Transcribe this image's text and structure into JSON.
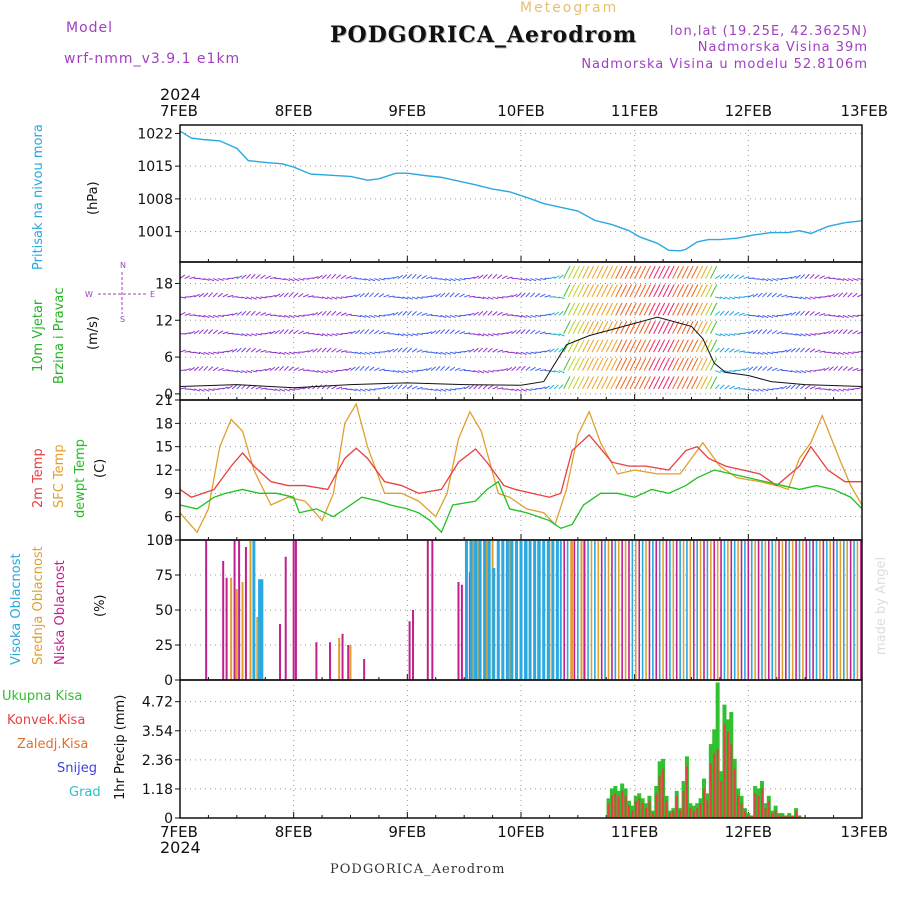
{
  "header": {
    "model_label": "Model",
    "model_name": "wrf-nmm_v3.9.1 e1km",
    "title": "PODGORICA_Aerodrom",
    "meteogram_label": "Meteogram",
    "lonlat": "lon,lat (19.25E, 42.3625N)",
    "elevation": "Nadmorska Visina 39m",
    "model_elevation": "Nadmorska Visina u modelu 52.8106m"
  },
  "footer": {
    "station": "PODGORICA_Aerodrom"
  },
  "watermark": "made by Angel",
  "colors": {
    "pressure": "#2aa8e0",
    "wind_label": "#22b322",
    "wind_sub": "#a040c0",
    "temp2m": "#e84040",
    "sfc": "#e0a030",
    "dew": "#20c020",
    "high_cloud": "#2aa8e0",
    "mid_cloud": "#e0a030",
    "low_cloud": "#c0208f",
    "total_precip": "#30c030",
    "conv_precip": "#e84040",
    "frozen": "#e07030",
    "snow": "#4040e0",
    "graupel": "#30c0c0"
  },
  "chart_data": [
    {
      "type": "line",
      "id": "pressure",
      "ylabel": "Pritisak na nivou mora",
      "unit": "(hPa)",
      "yticks": [
        "1022",
        "1015",
        "1008",
        "1001"
      ],
      "ytick_values": [
        1022,
        1015,
        1008,
        1001
      ],
      "ylim": [
        994.5,
        1023.8
      ],
      "x_start_label": "7FEB",
      "x_start_year": "2024",
      "x_labels": [
        "7FEB",
        "8FEB",
        "9FEB",
        "10FEB",
        "11FEB",
        "12FEB",
        "13FEB"
      ],
      "x_days": [
        0,
        1,
        2,
        3,
        4,
        5,
        6
      ],
      "series": [
        {
          "x": [
            0,
            0.1,
            0.2,
            0.35,
            0.5,
            0.6,
            0.75,
            0.9,
            1.0,
            1.15,
            1.3,
            1.5,
            1.65,
            1.75,
            1.9,
            2.0,
            2.15,
            2.3,
            2.45,
            2.6,
            2.75,
            2.9,
            3.05,
            3.2,
            3.35,
            3.5,
            3.65,
            3.8,
            3.95,
            4.05,
            4.2,
            4.3,
            4.4,
            4.45,
            4.55,
            4.65,
            4.75,
            4.9,
            5.05,
            5.2,
            5.35,
            5.45,
            5.55,
            5.7,
            5.85,
            6.0
          ],
          "values": [
            1022.5,
            1021.0,
            1020.7,
            1020.4,
            1018.8,
            1016.2,
            1015.8,
            1015.5,
            1014.8,
            1013.3,
            1013.1,
            1012.8,
            1012.0,
            1012.3,
            1013.5,
            1013.5,
            1013.0,
            1012.6,
            1011.8,
            1011.0,
            1010.1,
            1009.5,
            1008.3,
            1007.0,
            1006.2,
            1005.4,
            1003.4,
            1002.5,
            1001.2,
            999.8,
            998.5,
            997.0,
            996.9,
            997.2,
            998.8,
            999.3,
            999.3,
            999.6,
            1000.3,
            1000.8,
            1000.8,
            1001.2,
            1000.6,
            1002.1,
            1002.9,
            1003.3
          ]
        }
      ]
    },
    {
      "type": "barbs",
      "id": "wind",
      "ylabel": "10m Vjetar",
      "ylabel2": "Brzina i Pravac",
      "unit": "(m/s)",
      "compass": {
        "n": "N",
        "s": "S",
        "e": "E",
        "w": "W"
      },
      "yticks": [
        "18",
        "12",
        "6",
        "0"
      ],
      "ytick_values": [
        18,
        12,
        6,
        0
      ],
      "ylim": [
        -1,
        21.5
      ],
      "series": [
        {
          "name": "speed",
          "x": [
            0,
            0.5,
            1.0,
            1.5,
            2.0,
            2.5,
            3.0,
            3.2,
            3.4,
            3.6,
            3.8,
            4.0,
            4.2,
            4.5,
            4.6,
            4.7,
            4.8,
            5.0,
            5.2,
            5.5,
            6.0
          ],
          "values": [
            1.2,
            1.5,
            1.0,
            1.5,
            1.8,
            1.5,
            1.4,
            2.0,
            8.0,
            9.5,
            10.5,
            11.5,
            12.5,
            11.0,
            9.0,
            5.0,
            3.5,
            3.0,
            2.0,
            1.5,
            1.2
          ]
        }
      ]
    },
    {
      "type": "line",
      "id": "temperature",
      "ylabel": "2m Temp",
      "ylabel2": "SFC Temp",
      "ylabel3": "dewpt Temp",
      "unit": "(C)",
      "yticks": [
        "21",
        "18",
        "15",
        "12",
        "9",
        "6",
        "3"
      ],
      "ytick_values": [
        21,
        18,
        15,
        12,
        9,
        6,
        3
      ],
      "ylim": [
        3,
        21
      ],
      "series": [
        {
          "name": "2m Temp",
          "x": [
            0,
            0.1,
            0.2,
            0.3,
            0.45,
            0.55,
            0.65,
            0.8,
            0.95,
            1.1,
            1.3,
            1.45,
            1.55,
            1.65,
            1.8,
            1.95,
            2.1,
            2.3,
            2.45,
            2.6,
            2.7,
            2.85,
            2.95,
            3.1,
            3.25,
            3.35,
            3.45,
            3.6,
            3.8,
            3.95,
            4.1,
            4.3,
            4.45,
            4.55,
            4.65,
            4.8,
            4.95,
            5.1,
            5.25,
            5.45,
            5.55,
            5.7,
            5.85,
            6.0
          ],
          "values": [
            9.5,
            8.5,
            9.0,
            9.5,
            12.5,
            14.2,
            12.5,
            10.5,
            10.0,
            10.0,
            9.5,
            13.5,
            14.8,
            13.5,
            10.5,
            10.0,
            9.0,
            9.5,
            13.0,
            14.7,
            13.0,
            10.0,
            9.5,
            9.0,
            8.5,
            9.0,
            14.5,
            16.5,
            13.0,
            12.5,
            12.5,
            12.0,
            14.5,
            15.0,
            13.5,
            12.5,
            12.0,
            11.5,
            10.0,
            12.5,
            15.0,
            12.0,
            10.5,
            10.5
          ]
        },
        {
          "name": "SFC Temp",
          "x": [
            0,
            0.15,
            0.25,
            0.35,
            0.45,
            0.55,
            0.65,
            0.8,
            0.95,
            1.1,
            1.25,
            1.35,
            1.45,
            1.55,
            1.65,
            1.8,
            1.95,
            2.1,
            2.25,
            2.35,
            2.45,
            2.55,
            2.65,
            2.8,
            2.9,
            3.05,
            3.2,
            3.3,
            3.4,
            3.5,
            3.6,
            3.7,
            3.85,
            4.0,
            4.2,
            4.4,
            4.5,
            4.6,
            4.75,
            4.9,
            5.1,
            5.25,
            5.35,
            5.45,
            5.55,
            5.65,
            5.8,
            5.9,
            6.0
          ],
          "values": [
            6.5,
            4.0,
            7.0,
            15.0,
            18.5,
            17.0,
            12.0,
            7.5,
            8.5,
            8.0,
            5.5,
            9.0,
            18.0,
            20.5,
            15.0,
            9.0,
            9.0,
            8.0,
            6.0,
            9.0,
            16.0,
            19.5,
            17.0,
            9.0,
            8.5,
            7.0,
            6.5,
            5.0,
            9.5,
            16.5,
            19.5,
            15.5,
            11.5,
            12.0,
            11.5,
            11.5,
            13.5,
            15.5,
            12.5,
            11.0,
            10.5,
            10.0,
            9.5,
            13.5,
            15.5,
            19.0,
            13.5,
            10.0,
            7.5
          ]
        },
        {
          "name": "dewpt Temp",
          "x": [
            0,
            0.15,
            0.3,
            0.4,
            0.55,
            0.7,
            0.85,
            1.0,
            1.05,
            1.2,
            1.35,
            1.45,
            1.6,
            1.75,
            1.85,
            2.0,
            2.1,
            2.2,
            2.3,
            2.4,
            2.6,
            2.7,
            2.8,
            2.9,
            3.05,
            3.15,
            3.25,
            3.35,
            3.45,
            3.55,
            3.7,
            3.85,
            4.0,
            4.15,
            4.3,
            4.45,
            4.55,
            4.7,
            4.85,
            5.0,
            5.15,
            5.3,
            5.45,
            5.6,
            5.75,
            5.9,
            6.0
          ],
          "values": [
            7.5,
            7.0,
            8.5,
            9.0,
            9.5,
            9.0,
            9.0,
            8.5,
            6.5,
            7.0,
            6.0,
            7.0,
            8.5,
            8.0,
            7.5,
            7.0,
            6.5,
            5.5,
            4.0,
            7.5,
            8.0,
            9.5,
            10.5,
            7.0,
            6.5,
            6.0,
            5.5,
            4.5,
            5.0,
            7.5,
            9.0,
            9.0,
            8.5,
            9.5,
            9.0,
            10.0,
            11.0,
            12.0,
            11.5,
            11.0,
            10.5,
            10.0,
            9.5,
            10.0,
            9.5,
            8.5,
            7.0
          ]
        }
      ]
    },
    {
      "type": "bar",
      "id": "cloud",
      "ylabel": "Visoka Oblacnost",
      "ylabel2": "Srednja Oblacnost",
      "ylabel3": "Niska Oblacnost",
      "unit": "(%)",
      "yticks": [
        "100",
        "75",
        "50",
        "25",
        "0"
      ],
      "ytick_values": [
        100,
        75,
        50,
        25,
        0
      ],
      "ylim": [
        0,
        100
      ],
      "series": [
        {
          "name": "Niska Oblacnost",
          "x": [
            0.23,
            0.38,
            0.41,
            0.48,
            0.52,
            0.58,
            0.88,
            0.93,
            1.0,
            1.02,
            1.2,
            1.32,
            1.43,
            1.48,
            1.62,
            2.02,
            2.05,
            2.18,
            2.22,
            2.45,
            2.48,
            2.55
          ],
          "values": [
            100,
            85,
            73,
            100,
            100,
            95,
            40,
            88,
            100,
            100,
            27,
            27,
            33,
            25,
            15,
            42,
            50,
            100,
            100,
            70,
            68,
            77
          ]
        },
        {
          "name": "Srednja Oblacnost",
          "x": [
            0.45,
            0.5,
            0.55,
            0.62,
            0.68,
            1.4,
            1.5,
            2.58,
            2.62,
            2.7,
            2.75,
            2.8,
            2.9,
            3.05,
            3.15,
            3.25,
            3.35,
            3.45,
            3.55
          ],
          "values": [
            73,
            65,
            70,
            100,
            45,
            30,
            25,
            100,
            100,
            100,
            100,
            100,
            100,
            100,
            100,
            100,
            100,
            100,
            100
          ]
        },
        {
          "name": "Visoka Oblacnost",
          "x": [
            0.65,
            0.7,
            0.72,
            2.52,
            2.56,
            2.6,
            2.64,
            2.68,
            2.72,
            2.76,
            2.8,
            2.84,
            2.88,
            2.92,
            2.96,
            3.0,
            3.04,
            3.08,
            3.12,
            3.16,
            3.2,
            3.24,
            3.28,
            3.32
          ],
          "values": [
            100,
            72,
            72,
            100,
            100,
            100,
            100,
            100,
            100,
            80,
            100,
            100,
            100,
            100,
            100,
            100,
            100,
            100,
            100,
            100,
            100,
            100,
            100,
            100
          ]
        }
      ]
    },
    {
      "type": "bar",
      "id": "precip",
      "ylabel": "1hr Precip (mm)",
      "yticks": [
        "4.72",
        "3.54",
        "2.36",
        "1.18",
        "0"
      ],
      "ytick_values": [
        4.72,
        3.54,
        2.36,
        1.18,
        0
      ],
      "ylim": [
        0,
        5.6
      ],
      "legend": [
        "Ukupna Kisa",
        "Konvek.Kisa",
        "Zaledj.Kisa",
        "Snijeg",
        "Grad"
      ],
      "legend_position": "left",
      "series": [
        {
          "name": "Ukupna Kisa",
          "x": [
            3.77,
            3.8,
            3.83,
            3.86,
            3.89,
            3.92,
            3.95,
            3.98,
            4.01,
            4.04,
            4.07,
            4.1,
            4.13,
            4.16,
            4.19,
            4.22,
            4.25,
            4.28,
            4.31,
            4.34,
            4.37,
            4.4,
            4.43,
            4.46,
            4.49,
            4.52,
            4.55,
            4.58,
            4.61,
            4.64,
            4.67,
            4.7,
            4.73,
            4.76,
            4.79,
            4.82,
            4.85,
            4.88,
            4.91,
            4.94,
            4.97,
            5.0,
            5.03,
            5.06,
            5.09,
            5.12,
            5.15,
            5.18,
            5.21,
            5.24,
            5.27,
            5.3,
            5.33,
            5.36,
            5.39,
            5.42,
            5.45
          ],
          "values": [
            0.8,
            1.2,
            1.3,
            1.1,
            1.4,
            1.2,
            0.7,
            0.5,
            0.9,
            1.0,
            0.8,
            0.6,
            0.9,
            0.3,
            1.3,
            2.3,
            2.4,
            0.9,
            0.3,
            0.4,
            1.1,
            0.4,
            1.5,
            2.5,
            0.6,
            0.5,
            0.6,
            0.8,
            1.6,
            1.0,
            3.0,
            3.6,
            5.5,
            1.9,
            4.6,
            4.0,
            4.3,
            2.4,
            1.2,
            0.9,
            0.4,
            0.2,
            0.1,
            1.3,
            1.2,
            1.5,
            0.6,
            0.9,
            0.3,
            0.5,
            0.2,
            0.2,
            0.1,
            0.2,
            0.1,
            0.4,
            0.1
          ]
        },
        {
          "name": "Konvek.Kisa",
          "x": [
            3.77,
            3.8,
            3.83,
            3.86,
            3.89,
            3.92,
            3.95,
            3.98,
            4.01,
            4.04,
            4.07,
            4.1,
            4.13,
            4.16,
            4.19,
            4.22,
            4.25,
            4.28,
            4.31,
            4.34,
            4.37,
            4.4,
            4.43,
            4.46,
            4.49,
            4.52,
            4.55,
            4.58,
            4.61,
            4.64,
            4.67,
            4.7,
            4.73,
            4.76,
            4.79,
            4.82,
            4.85,
            4.88,
            4.91,
            4.94,
            4.97,
            5.0,
            5.03,
            5.06,
            5.09,
            5.12,
            5.15,
            5.18,
            5.21,
            5.24,
            5.27,
            5.3,
            5.33,
            5.36,
            5.39,
            5.42,
            5.45
          ],
          "values": [
            0.6,
            0.9,
            1.0,
            0.9,
            1.1,
            0.9,
            0.5,
            0.3,
            0.7,
            0.8,
            0.6,
            0.4,
            0.7,
            0.2,
            1.0,
            1.7,
            2.0,
            0.7,
            0.2,
            0.3,
            0.9,
            0.3,
            1.1,
            2.1,
            0.4,
            0.3,
            0.4,
            0.6,
            1.2,
            0.7,
            2.2,
            2.6,
            2.8,
            1.5,
            3.8,
            3.5,
            3.0,
            2.0,
            0.9,
            0.6,
            0.3,
            0.1,
            0.1,
            1.0,
            0.9,
            1.2,
            0.4,
            0.7,
            0.2,
            0.3,
            0.1,
            0.1,
            0.1,
            0.1,
            0.1,
            0.3,
            0.1
          ]
        }
      ]
    }
  ]
}
